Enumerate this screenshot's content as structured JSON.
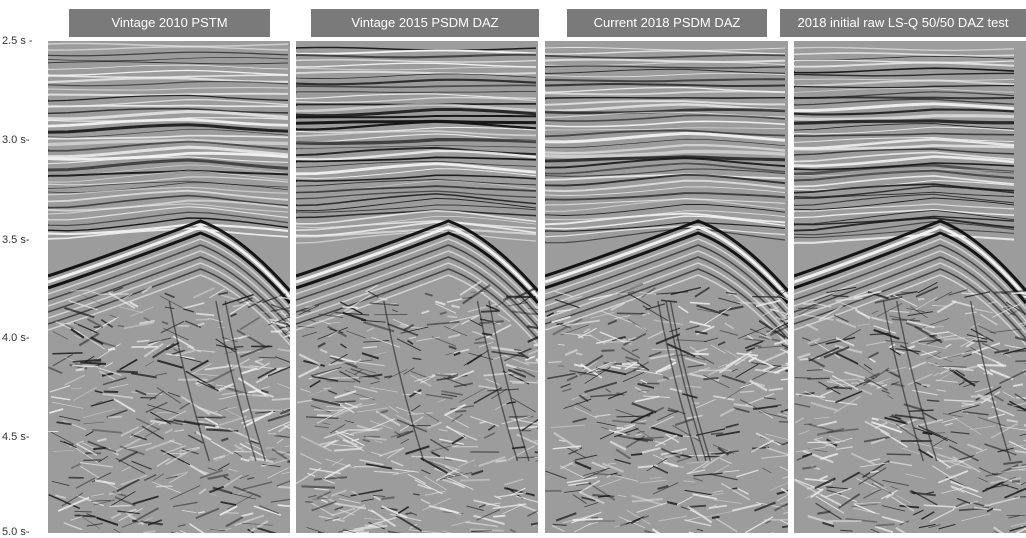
{
  "axis": {
    "ticks": [
      "2.5 s -",
      "3.0 s-",
      "3.5 s-",
      "4.0 s-",
      "4.5 s-",
      "5.0 s-"
    ]
  },
  "panels": [
    {
      "title": "Vintage 2010 PSTM"
    },
    {
      "title": "Vintage 2015 PSDM DAZ"
    },
    {
      "title": "Current 2018 PSDM DAZ"
    },
    {
      "title": "2018 initial raw LS-Q 50/50 DAZ test"
    }
  ]
}
